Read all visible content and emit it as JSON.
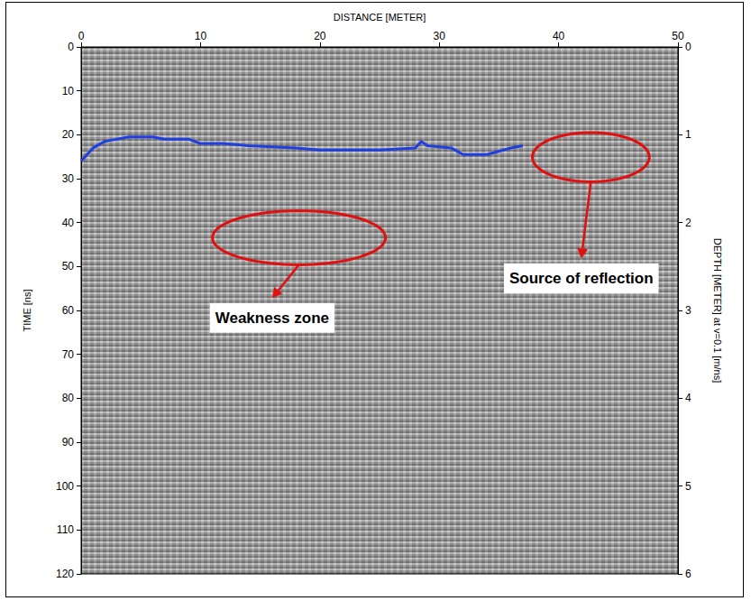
{
  "chart_data": {
    "type": "line",
    "x_label": "DISTANCE [METER]",
    "y_label": "TIME [ns]",
    "y2_label": "DEPTH [METER] at v=0.1 [m/ns]",
    "xlim": [
      0,
      50
    ],
    "xticks": [
      0,
      10,
      20,
      30,
      40,
      50
    ],
    "ylim": [
      120,
      0
    ],
    "yticks": [
      0,
      10,
      20,
      30,
      40,
      50,
      60,
      70,
      80,
      90,
      100,
      110,
      120
    ],
    "y2lim": [
      6,
      0
    ],
    "y2ticks": [
      0,
      1,
      2,
      3,
      4,
      5,
      6
    ],
    "grid": false,
    "x": [
      0,
      1,
      2,
      4,
      6,
      7,
      9,
      10,
      12,
      14,
      18,
      20,
      25,
      28,
      28.5,
      29,
      31,
      32,
      34,
      36,
      37
    ],
    "series": [
      {
        "color": "#1f3fe0",
        "line_style": "solid",
        "values": [
          26,
          23,
          21.5,
          20.5,
          20.5,
          21,
          21,
          22,
          22,
          22.5,
          23,
          23.5,
          23.5,
          23,
          21.5,
          22.5,
          23,
          24.5,
          24.5,
          23,
          22.5
        ]
      }
    ],
    "annotations": [
      {
        "text": "Weakness zone",
        "color": "#e01010",
        "xrange": [
          11,
          25.5
        ],
        "yrange": [
          37.3,
          49.6
        ],
        "label_x": 16,
        "label_y": 61.7
      },
      {
        "text": "Source of reflection",
        "color": "#e01010",
        "xrange": [
          37.8,
          47.6
        ],
        "yrange": [
          19.5,
          30.7
        ],
        "label_x": 41.9,
        "label_y": 52.7
      }
    ]
  }
}
